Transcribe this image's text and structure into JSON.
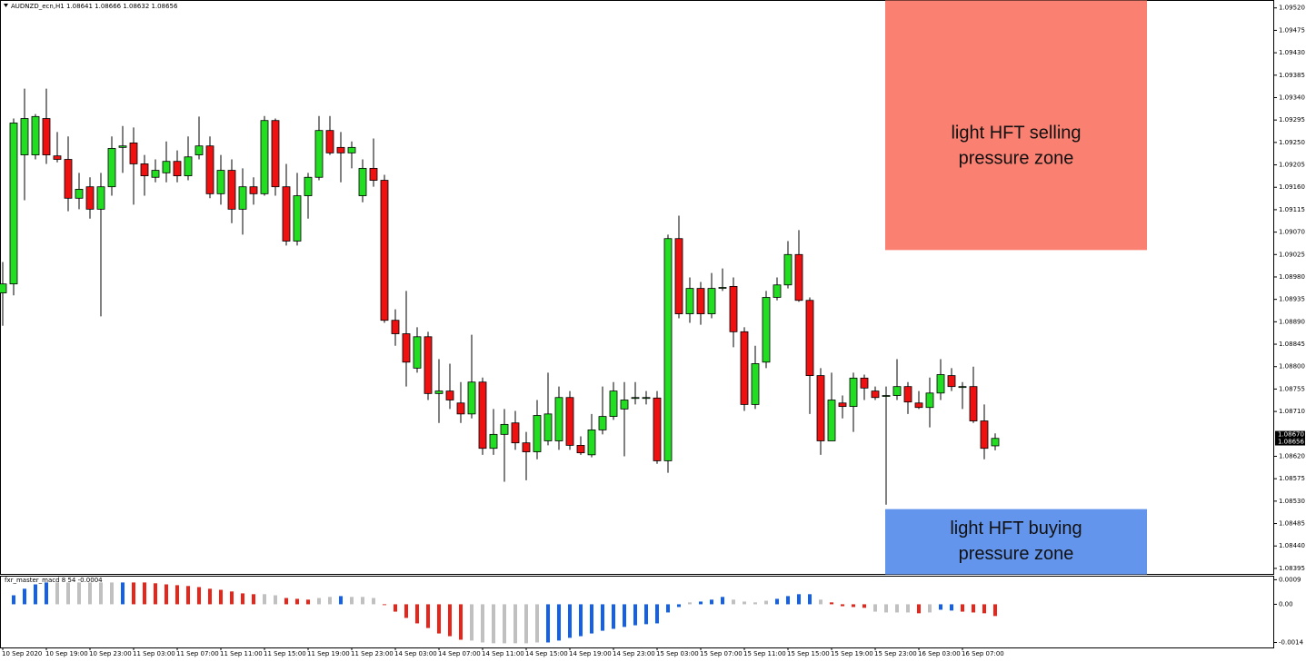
{
  "chart_data": [
    {
      "type": "candlestick",
      "title": "AUDNZD_ecn,H1  1.08641 1.08666 1.08632 1.08656",
      "categories": [
        "10 Sep 2020",
        null,
        null,
        null,
        "10 Sep 19:00",
        null,
        null,
        null,
        "10 Sep 23:00",
        null,
        null,
        null,
        "11 Sep 03:00",
        null,
        null,
        null,
        "11 Sep 07:00",
        null,
        null,
        null,
        "11 Sep 11:00",
        null,
        null,
        null,
        "11 Sep 15:00",
        null,
        null,
        null,
        "11 Sep 19:00",
        null,
        null,
        null,
        "11 Sep 23:00",
        null,
        null,
        null,
        "14 Sep 03:00",
        null,
        null,
        null,
        "14 Sep 07:00",
        null,
        null,
        null,
        "14 Sep 11:00",
        null,
        null,
        null,
        "14 Sep 15:00",
        null,
        null,
        null,
        "14 Sep 19:00",
        null,
        null,
        null,
        "14 Sep 23:00",
        null,
        null,
        null,
        "15 Sep 03:00",
        null,
        null,
        null,
        "15 Sep 07:00",
        null,
        null,
        null,
        "15 Sep 11:00",
        null,
        null,
        null,
        "15 Sep 15:00",
        null,
        null,
        null,
        "15 Sep 19:00",
        null,
        null,
        null,
        "15 Sep 23:00",
        null,
        null,
        null,
        "16 Sep 03:00",
        null,
        null,
        null,
        "16 Sep 07:00",
        null,
        null,
        null
      ],
      "open": [
        1.08948,
        1.08966,
        1.09225,
        1.09225,
        1.09298,
        1.09223,
        1.09216,
        1.09138,
        1.09161,
        1.09116,
        1.09161,
        1.0924,
        1.09249,
        1.09207,
        1.0918,
        1.09189,
        1.09212,
        1.09183,
        1.09225,
        1.09243,
        1.09147,
        1.09194,
        1.09116,
        1.09161,
        1.09147,
        1.09294,
        1.09161,
        1.09052,
        1.09143,
        1.0918,
        1.09274,
        1.0924,
        1.09229,
        1.09143,
        1.09198,
        1.09174,
        1.08893,
        1.08866,
        1.08797,
        1.0886,
        1.08746,
        1.08751,
        1.08727,
        1.08705,
        1.08769,
        1.08636,
        1.08664,
        1.08687,
        1.08647,
        1.08629,
        1.08651,
        1.08651,
        1.08738,
        1.08642,
        1.08623,
        1.08673,
        1.087,
        1.08715,
        1.08738,
        1.08738,
        1.08737,
        1.08611,
        1.09057,
        1.08906,
        1.08957,
        1.08906,
        1.08959,
        1.08961,
        1.0887,
        1.08724,
        1.08809,
        1.08939,
        1.08964,
        1.09025,
        1.08933,
        1.08782,
        1.08651,
        1.08727,
        1.0872,
        1.08777,
        1.08751,
        1.08742,
        1.08742,
        1.0876,
        1.08727,
        1.08718,
        1.08747,
        1.08782,
        1.0876,
        1.0876,
        1.08691,
        1.08641
      ],
      "high": [
        1.0901,
        1.09298,
        1.09358,
        1.09307,
        1.09358,
        1.09271,
        1.09262,
        1.09189,
        1.0918,
        1.09189,
        1.09262,
        1.09283,
        1.0928,
        1.09225,
        1.09216,
        1.09252,
        1.09234,
        1.09262,
        1.09302,
        1.09262,
        1.09225,
        1.09216,
        1.09198,
        1.0918,
        1.09303,
        1.09298,
        1.09207,
        1.09189,
        1.09189,
        1.09303,
        1.09303,
        1.09271,
        1.09252,
        1.09216,
        1.09258,
        1.09185,
        1.08915,
        1.08952,
        1.08879,
        1.0887,
        1.08815,
        1.08806,
        1.08769,
        1.08864,
        1.08778,
        1.08715,
        1.08715,
        1.08711,
        1.08669,
        1.08733,
        1.08788,
        1.0876,
        1.08751,
        1.0866,
        1.08705,
        1.0876,
        1.08769,
        1.08769,
        1.08769,
        1.08751,
        1.08751,
        1.09065,
        1.09103,
        1.08979,
        1.0897,
        1.08988,
        1.08997,
        1.08979,
        1.08879,
        1.08842,
        1.08952,
        1.08979,
        1.09052,
        1.09074,
        1.08939,
        1.08797,
        1.08788,
        1.08742,
        1.08788,
        1.08784,
        1.0876,
        1.0876,
        1.08815,
        1.08769,
        1.08751,
        1.08778,
        1.08815,
        1.08797,
        1.08769,
        1.088,
        1.08724,
        1.08666
      ],
      "low": [
        1.08882,
        1.08943,
        1.09134,
        1.09216,
        1.09207,
        1.0921,
        1.09112,
        1.09116,
        1.09097,
        1.08901,
        1.09143,
        1.09189,
        1.09125,
        1.09143,
        1.0917,
        1.0917,
        1.0917,
        1.09174,
        1.09216,
        1.09138,
        1.09125,
        1.09088,
        1.09065,
        1.09125,
        1.09143,
        1.09143,
        1.09043,
        1.09043,
        1.09097,
        1.09174,
        1.09225,
        1.0917,
        1.09198,
        1.0913,
        1.09161,
        1.08888,
        1.08842,
        1.0876,
        1.08788,
        1.08733,
        1.08687,
        1.08715,
        1.08687,
        1.08696,
        1.08623,
        1.08623,
        1.08569,
        1.08633,
        1.08572,
        1.08614,
        1.08642,
        1.08633,
        1.08633,
        1.08623,
        1.08618,
        1.08664,
        1.08693,
        1.0862,
        1.08724,
        1.08724,
        1.08605,
        1.08587,
        1.08897,
        1.08888,
        1.08884,
        1.08897,
        1.08952,
        1.08839,
        1.08711,
        1.08715,
        1.08797,
        1.08933,
        1.08957,
        1.0893,
        1.08705,
        1.08623,
        1.08651,
        1.08696,
        1.08669,
        1.08733,
        1.08733,
        1.08523,
        1.08733,
        1.08705,
        1.08715,
        1.08678,
        1.08733,
        1.08751,
        1.08715,
        1.08687,
        1.08614,
        1.08632
      ],
      "close": [
        1.08966,
        1.09289,
        1.09298,
        1.09302,
        1.09225,
        1.09216,
        1.09138,
        1.09156,
        1.09116,
        1.09161,
        1.09238,
        1.09243,
        1.09207,
        1.09183,
        1.09194,
        1.09212,
        1.09183,
        1.09221,
        1.09243,
        1.09147,
        1.09194,
        1.09116,
        1.09161,
        1.09147,
        1.09294,
        1.09161,
        1.09052,
        1.09143,
        1.0918,
        1.09274,
        1.09229,
        1.09229,
        1.0924,
        1.09198,
        1.09174,
        1.08893,
        1.08866,
        1.08809,
        1.0886,
        1.08746,
        1.08751,
        1.08733,
        1.08705,
        1.08769,
        1.08636,
        1.08664,
        1.08684,
        1.08647,
        1.08629,
        1.08702,
        1.08705,
        1.08738,
        1.08642,
        1.08627,
        1.08673,
        1.087,
        1.08751,
        1.08733,
        1.08738,
        1.08738,
        1.08611,
        1.09057,
        1.08906,
        1.08957,
        1.08906,
        1.08957,
        1.08959,
        1.0887,
        1.08724,
        1.08806,
        1.08939,
        1.08964,
        1.09025,
        1.08933,
        1.08782,
        1.08651,
        1.08733,
        1.0872,
        1.08777,
        1.08757,
        1.08738,
        1.08742,
        1.0876,
        1.08729,
        1.08718,
        1.08747,
        1.08784,
        1.0876,
        1.0876,
        1.08691,
        1.08636,
        1.08656
      ],
      "up_color": "#22dd22",
      "down_color": "#ee1111",
      "wick_color": "#000000",
      "ylim": [
        1.08383,
        1.09535
      ],
      "yticks": [
        {
          "value": 1.0952,
          "label": "1.09520"
        },
        1.09475,
        {
          "value": 1.0943,
          "label": "1.09430"
        },
        1.09385,
        {
          "value": 1.0934,
          "label": "1.09340"
        },
        1.09295,
        {
          "value": 1.0925,
          "label": "1.09250"
        },
        1.09205,
        {
          "value": 1.0916,
          "label": "1.09160"
        },
        1.09115,
        {
          "value": 1.0907,
          "label": "1.09070"
        },
        1.09025,
        {
          "value": 1.0898,
          "label": "1.08980"
        },
        1.08935,
        {
          "value": 1.0889,
          "label": "1.08890"
        },
        1.08845,
        {
          "value": 1.088,
          "label": "1.08800"
        },
        1.08755,
        {
          "value": 1.0871,
          "label": "1.08710"
        },
        {
          "value": 1.0862,
          "label": "1.08620"
        },
        1.08575,
        {
          "value": 1.0853,
          "label": "1.08530"
        },
        1.08485,
        {
          "value": 1.0844,
          "label": "1.08440"
        },
        1.08395
      ],
      "price_markers": [
        {
          "value": 1.0867,
          "label": "1.08670"
        },
        1.08656
      ],
      "zones": [
        {
          "text": [
            "light HFT selling",
            "pressure zone"
          ],
          "color": "#fa8072",
          "from": 1.09034,
          "to": 1.09535
        },
        {
          "text": [
            "light HFT buying",
            "pressure zone"
          ],
          "color": "#6495ed",
          "from": 1.08383,
          "to": 1.08514
        }
      ],
      "grid": false
    },
    {
      "type": "bar",
      "title": "fxr_master_macd 8 54 -0.0004",
      "values": [
        null,
        0.00033,
        0.00057,
        0.00073,
        0.0008,
        0.0008,
        0.0008,
        0.0008,
        0.0008,
        0.0008,
        0.0008,
        0.0008,
        0.0008,
        0.0008,
        0.00077,
        0.00073,
        0.0007,
        0.00067,
        0.00063,
        0.00057,
        0.00053,
        0.00047,
        0.0004,
        0.00037,
        0.00037,
        0.00033,
        0.00023,
        0.0002,
        0.00017,
        0.00023,
        0.00027,
        0.0003,
        0.00027,
        0.00027,
        0.00023,
        -3e-05,
        -0.00027,
        -0.0005,
        -0.0007,
        -0.00087,
        -0.00107,
        -0.00117,
        -0.0013,
        -0.00133,
        -0.0014,
        -0.00143,
        -0.00143,
        -0.00143,
        -0.00143,
        -0.0014,
        -0.0014,
        -0.00133,
        -0.00123,
        -0.00117,
        -0.00107,
        -0.00097,
        -0.0009,
        -0.00083,
        -0.00077,
        -0.00073,
        -0.0007,
        -0.0003,
        -0.0001,
        7e-05,
        0.0001,
        0.00017,
        0.00027,
        0.00017,
        0.0001,
        7e-05,
        0.00013,
        0.0002,
        0.0003,
        0.00037,
        0.00037,
        0.00017,
        7e-05,
        -7e-05,
        -0.0001,
        -0.00013,
        -0.00027,
        -0.0003,
        -0.0003,
        -0.0003,
        -0.00033,
        -0.0003,
        -0.0002,
        -0.00023,
        -0.00027,
        -0.0003,
        -0.00033,
        -0.00043
      ],
      "colors": [
        null,
        "#1560e8",
        "#1560e8",
        "#1560e8",
        "#1560e8",
        "#c0c0c0",
        "#c0c0c0",
        "#c0c0c0",
        "#c0c0c0",
        "#c0c0c0",
        "#c0c0c0",
        "#1560e8",
        "#e8251a",
        "#e8251a",
        "#e8251a",
        "#e8251a",
        "#e8251a",
        "#e8251a",
        "#e8251a",
        "#e8251a",
        "#e8251a",
        "#e8251a",
        "#e8251a",
        "#e8251a",
        "#c0c0c0",
        "#c0c0c0",
        "#e8251a",
        "#e8251a",
        "#e8251a",
        "#c0c0c0",
        "#c0c0c0",
        "#1560e8",
        "#c0c0c0",
        "#c0c0c0",
        "#c0c0c0",
        "#e8251a",
        "#e8251a",
        "#e8251a",
        "#e8251a",
        "#e8251a",
        "#e8251a",
        "#e8251a",
        "#e8251a",
        "#c0c0c0",
        "#c0c0c0",
        "#c0c0c0",
        "#c0c0c0",
        "#c0c0c0",
        "#c0c0c0",
        "#c0c0c0",
        "#1560e8",
        "#1560e8",
        "#1560e8",
        "#1560e8",
        "#1560e8",
        "#1560e8",
        "#1560e8",
        "#1560e8",
        "#1560e8",
        "#1560e8",
        "#1560e8",
        "#1560e8",
        "#1560e8",
        "#c0c0c0",
        "#1560e8",
        "#1560e8",
        "#1560e8",
        "#c0c0c0",
        "#c0c0c0",
        "#c0c0c0",
        "#c0c0c0",
        "#1560e8",
        "#1560e8",
        "#1560e8",
        "#1560e8",
        "#c0c0c0",
        "#e8251a",
        "#e8251a",
        "#e8251a",
        "#e8251a",
        "#c0c0c0",
        "#c0c0c0",
        "#c0c0c0",
        "#c0c0c0",
        "#e8251a",
        "#c0c0c0",
        "#1560e8",
        "#1560e8",
        "#e8251a",
        "#e8251a",
        "#e8251a",
        "#e8251a"
      ],
      "ylim": [
        -0.0016,
        0.00103
      ],
      "yticks": [
        0.0009,
        {
          "value": 0,
          "label": "0.00"
        },
        -0.0014
      ]
    }
  ]
}
